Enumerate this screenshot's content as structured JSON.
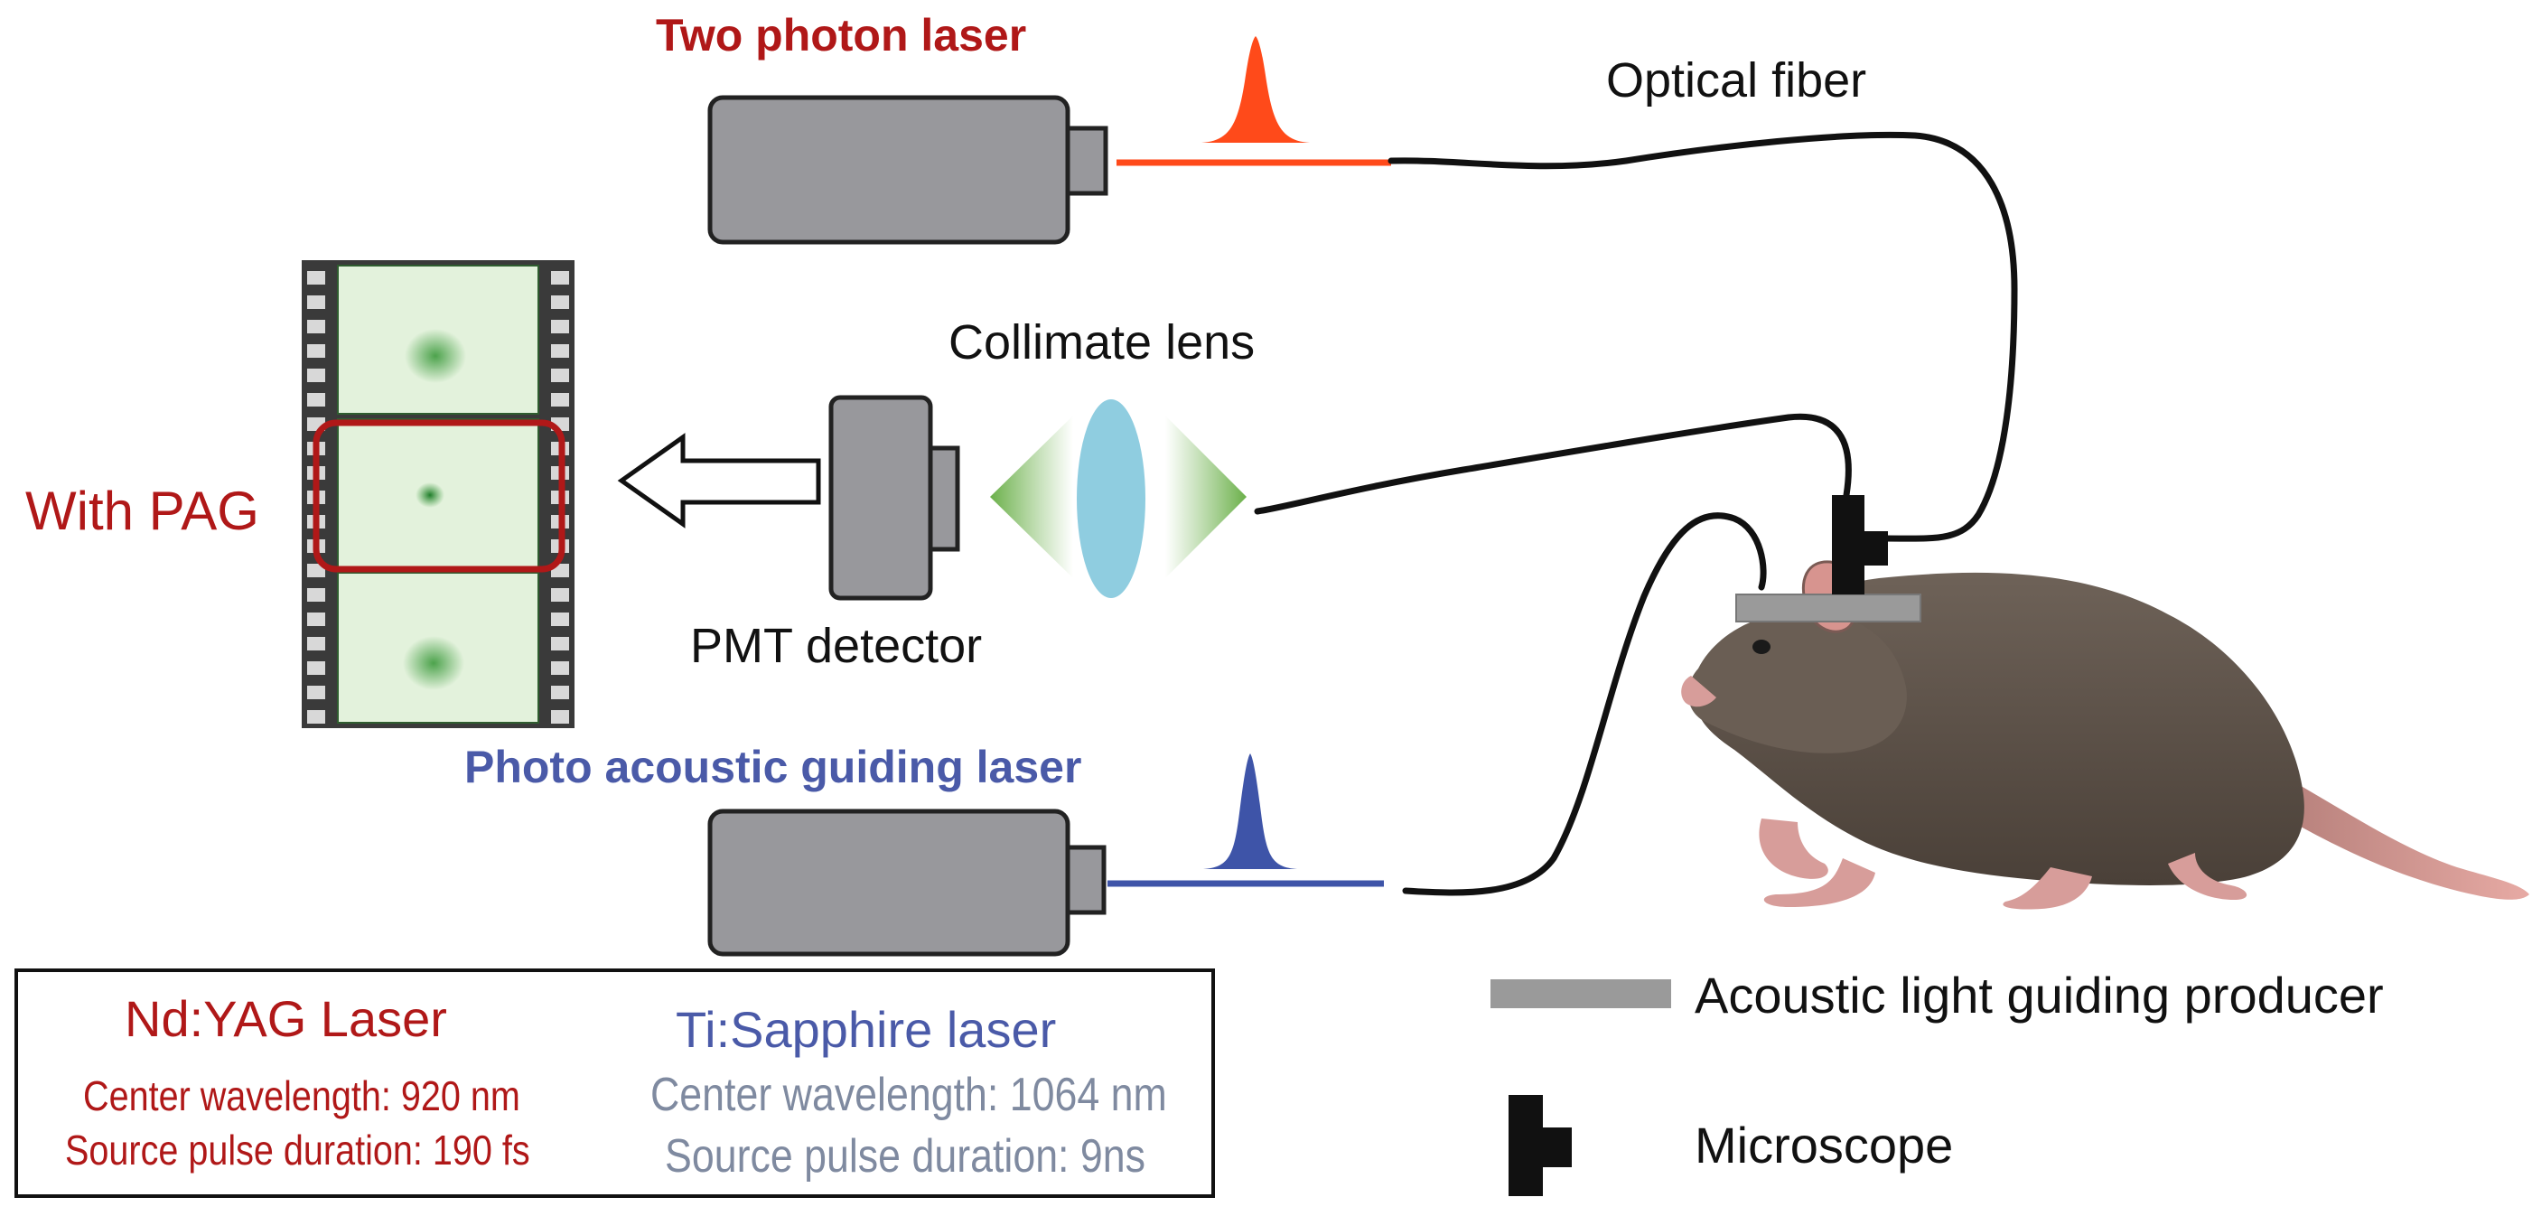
{
  "labels": {
    "two_photon_laser": "Two photon laser",
    "optical_fiber": "Optical fiber",
    "collimate_lens": "Collimate lens",
    "pmt_detector": "PMT detector",
    "with_pag": "With PAG",
    "photo_acoustic_laser": "Photo acoustic guiding laser"
  },
  "legend": {
    "producer_label": "Acoustic light guiding producer",
    "microscope_label": "Microscope"
  },
  "info_box": {
    "left": {
      "title": "Nd:YAG Laser",
      "line1": "Center wavelength: 920 nm",
      "line2": "Source pulse duration:  190 fs"
    },
    "right": {
      "title": "Ti:Sapphire laser",
      "line1": "Center wavelength: 1064 nm",
      "line2": "Source pulse duration:  9ns"
    }
  },
  "colors": {
    "red_text": "#b01818",
    "blue_text": "#4a5aa8",
    "laser_body": "#98989c",
    "red_beam": "#ff4a1a",
    "blue_beam": "#3e54a8",
    "lens": "#8fcde0",
    "cone": "#6bb04a",
    "film_frame": "#e3f2dc",
    "highlight": "#b01818"
  }
}
